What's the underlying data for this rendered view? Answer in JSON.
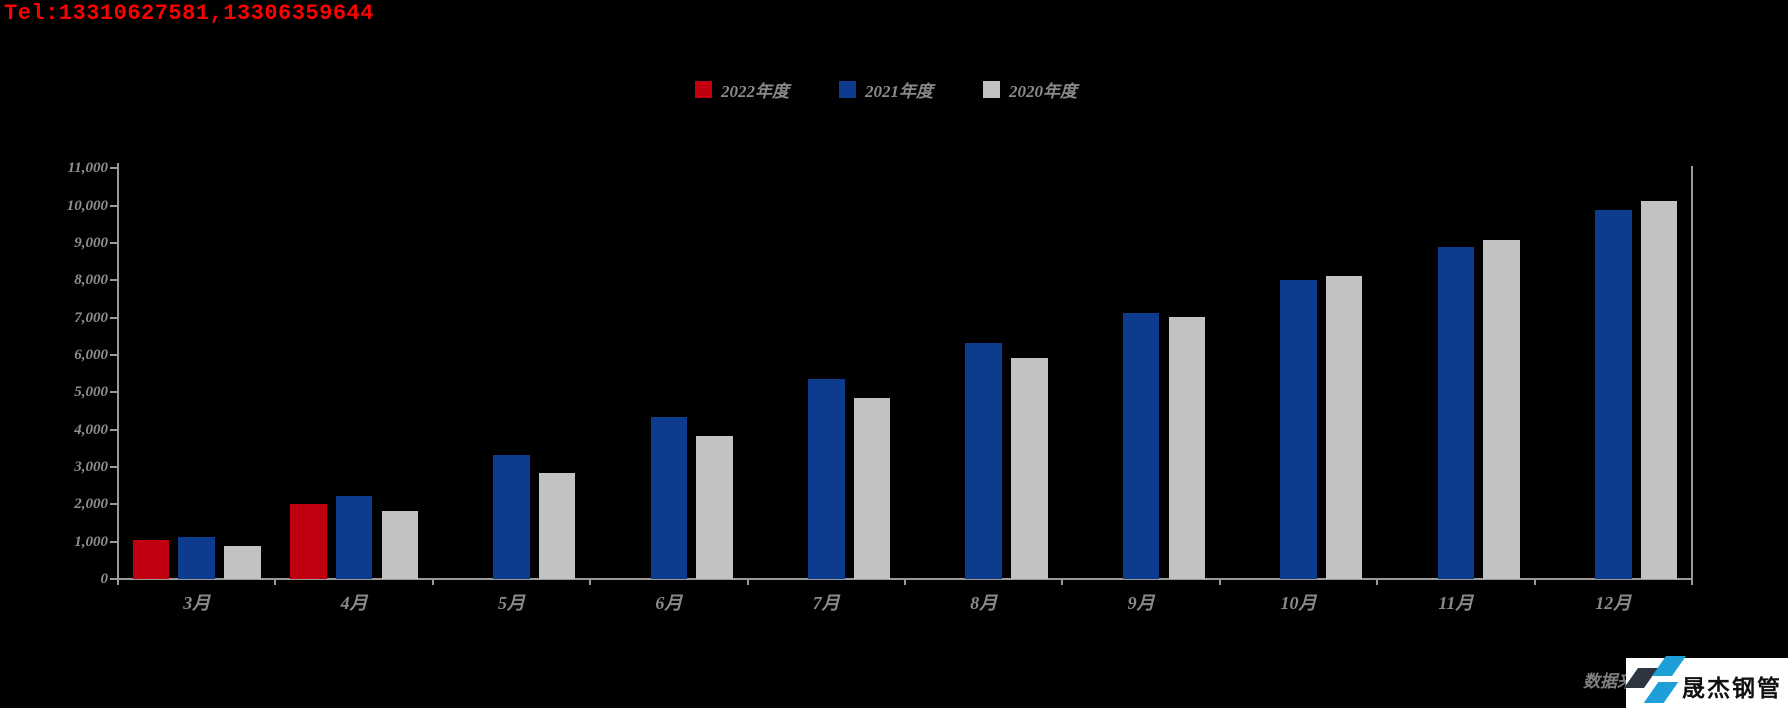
{
  "header": {
    "tel": "Tel:13310627581,13306359644"
  },
  "legend": {
    "items": [
      {
        "label": "2022年度",
        "color": "#c00010"
      },
      {
        "label": "2021年度",
        "color": "#0d3c8f"
      },
      {
        "label": "2020年度",
        "color": "#c2c2c2"
      }
    ]
  },
  "colors": {
    "background": "#000000",
    "tel_text": "#ff0000",
    "axis_line": "#9a9a9a",
    "label_text": "#8a8a8a",
    "bar_red": "#c00010",
    "bar_blue": "#0d3c8f",
    "bar_gray": "#c2c2c2",
    "logo_dark": "#2e3540",
    "logo_blue": "#1e9fd8",
    "logo_bg": "#ffffff"
  },
  "footer": {
    "source_note": "数据来源",
    "logo_text": "晟杰钢管"
  },
  "chart_data": {
    "type": "bar",
    "title": "",
    "xlabel": "",
    "ylabel": "",
    "categories": [
      "3月",
      "4月",
      "5月",
      "6月",
      "7月",
      "8月",
      "9月",
      "10月",
      "11月",
      "12月"
    ],
    "series": [
      {
        "name": "2022年度",
        "color": "#c00010",
        "slot": -1,
        "values": [
          1040,
          2010,
          null,
          null,
          null,
          null,
          null,
          null,
          null,
          null
        ]
      },
      {
        "name": "2021年度",
        "color": "#0d3c8f",
        "slot": 0,
        "values": [
          1130,
          2230,
          3320,
          4340,
          5370,
          6330,
          7120,
          8020,
          8890,
          9890
        ]
      },
      {
        "name": "2020年度",
        "color": "#c2c2c2",
        "slot": 1,
        "values": [
          890,
          1820,
          2830,
          3830,
          4860,
          5920,
          7010,
          8110,
          9070,
          10120
        ]
      }
    ],
    "ylim": [
      0,
      11000
    ],
    "ytick_step": 1000,
    "ytick_labels": [
      "0",
      "1,000",
      "2,000",
      "3,000",
      "4,000",
      "5,000",
      "6,000",
      "7,000",
      "8,000",
      "9,000",
      "10,000",
      "11,000"
    ],
    "grid": false,
    "legend_position": "top-center"
  }
}
